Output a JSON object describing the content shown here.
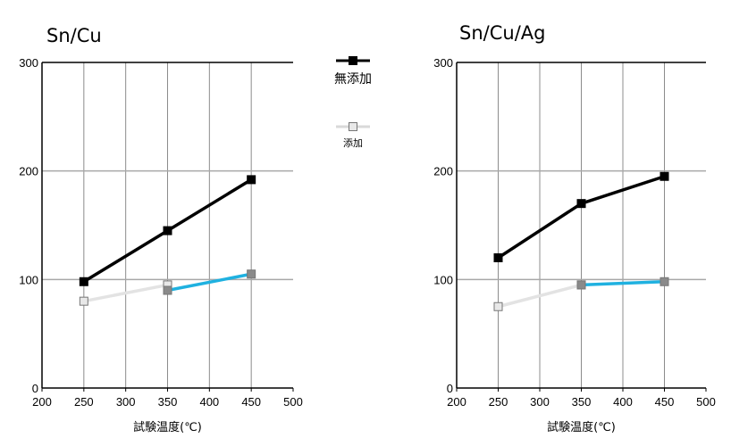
{
  "chart_data": [
    {
      "type": "line",
      "title": "Sn/Cu",
      "xlabel": "試験温度(℃)",
      "ylabel": "",
      "xlim": [
        200,
        500
      ],
      "ylim": [
        0,
        300
      ],
      "x_ticks": [
        "200",
        "250",
        "300",
        "350",
        "400",
        "450",
        "500"
      ],
      "y_ticks": [
        "0",
        "100",
        "200",
        "300"
      ],
      "grid": true,
      "series": [
        {
          "name": "無添加",
          "color": "#000000",
          "marker_fill": "#000000",
          "points": [
            {
              "x": 250,
              "y": 98
            },
            {
              "x": 350,
              "y": 145
            },
            {
              "x": 450,
              "y": 192
            }
          ]
        },
        {
          "name": "添加",
          "color": "#e3e3e3",
          "marker_fill": "#e8e8e8",
          "points": [
            {
              "x": 250,
              "y": 80
            },
            {
              "x": 350,
              "y": 95
            }
          ]
        },
        {
          "name": "",
          "color": "#1fb1e0",
          "marker_fill": "#8a8a8a",
          "points": [
            {
              "x": 350,
              "y": 90
            },
            {
              "x": 450,
              "y": 105
            }
          ]
        }
      ]
    },
    {
      "type": "line",
      "title": "Sn/Cu/Ag",
      "xlabel": "試験温度(℃)",
      "ylabel": "",
      "xlim": [
        200,
        500
      ],
      "ylim": [
        0,
        300
      ],
      "x_ticks": [
        "200",
        "250",
        "300",
        "350",
        "400",
        "450",
        "500"
      ],
      "y_ticks": [
        "0",
        "100",
        "200",
        "300"
      ],
      "grid": true,
      "series": [
        {
          "name": "無添加",
          "color": "#000000",
          "marker_fill": "#000000",
          "points": [
            {
              "x": 250,
              "y": 120
            },
            {
              "x": 350,
              "y": 170
            },
            {
              "x": 450,
              "y": 195
            }
          ]
        },
        {
          "name": "添加",
          "color": "#e3e3e3",
          "marker_fill": "#e8e8e8",
          "points": [
            {
              "x": 250,
              "y": 75
            },
            {
              "x": 350,
              "y": 95
            }
          ]
        },
        {
          "name": "",
          "color": "#1fb1e0",
          "marker_fill": "#8a8a8a",
          "points": [
            {
              "x": 350,
              "y": 95
            },
            {
              "x": 450,
              "y": 98
            }
          ]
        }
      ]
    }
  ],
  "legend": {
    "placement": "between-charts-top",
    "items": [
      {
        "label": "無添加",
        "line_color": "#000000",
        "marker_fill": "#000000"
      },
      {
        "label": "添加",
        "line_color": "#d9d9d9",
        "marker_fill": "#e8e8e8"
      }
    ]
  }
}
